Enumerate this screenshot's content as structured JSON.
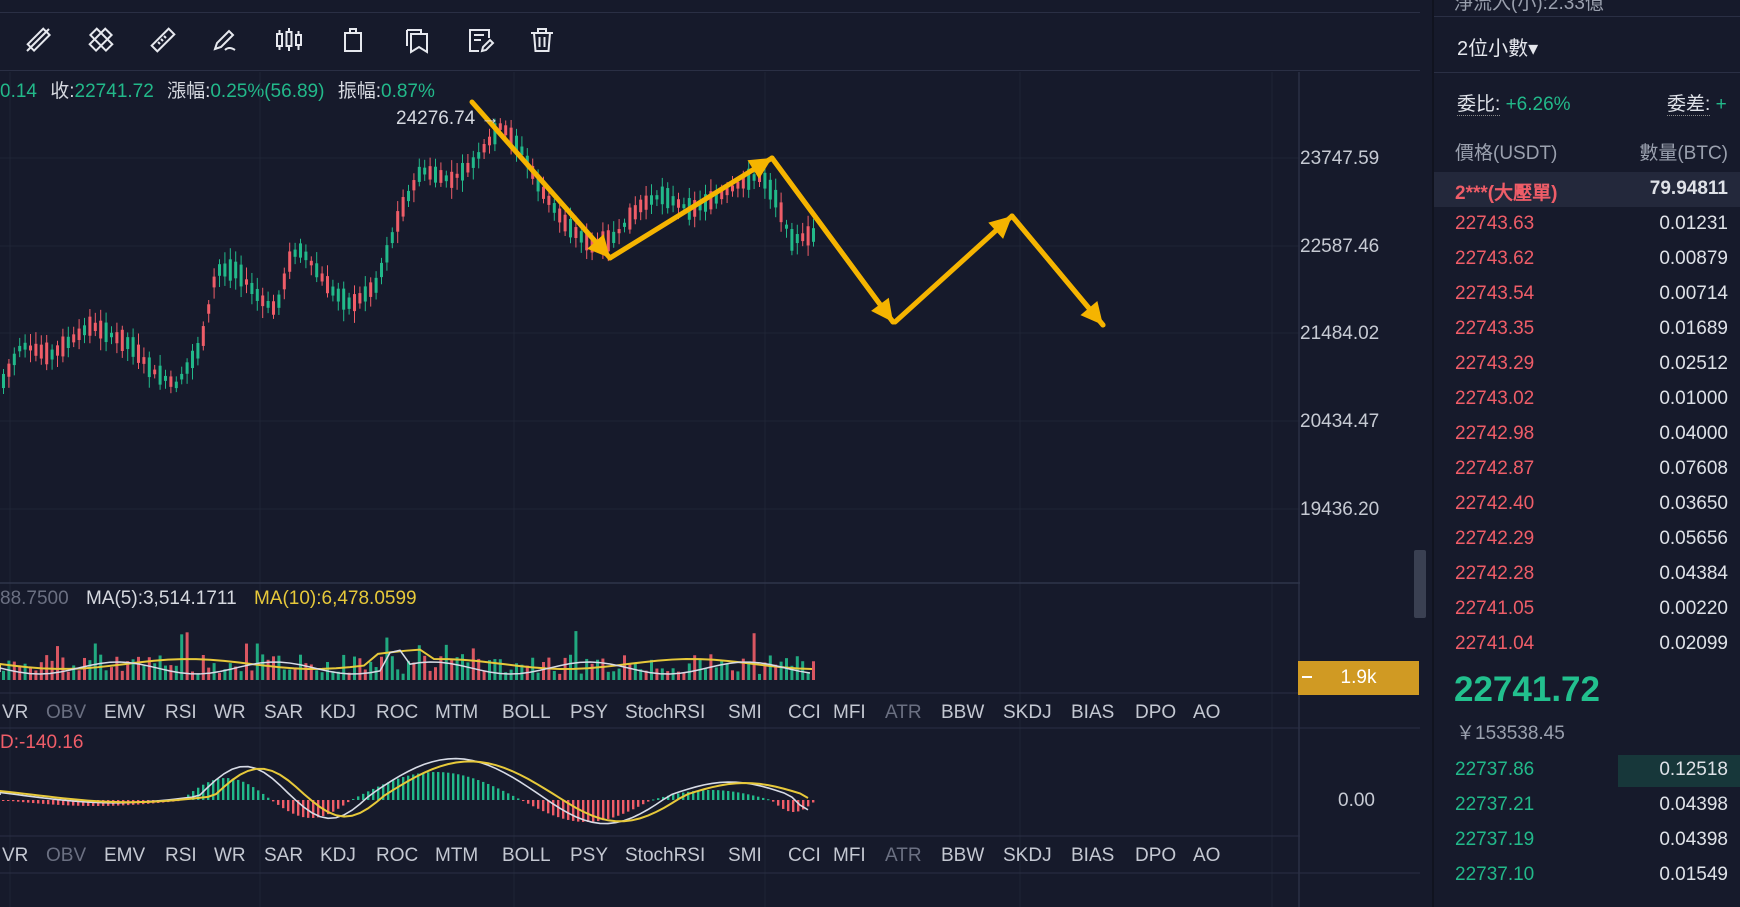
{
  "colors": {
    "background": "#161a2b",
    "up": "#22b98a",
    "down": "#ef5d68",
    "accent": "#f5b400",
    "ma10": "#e7c93a",
    "volume_badge": "#d09a23"
  },
  "toolbar": {
    "icons": [
      "ruler-diagonal-icon",
      "ruler-cross-icon",
      "ruler-icon",
      "pen-icon",
      "candles-icon",
      "clipboard-icon",
      "copy-icon",
      "edit-note-icon",
      "trash-icon"
    ]
  },
  "ohlc": {
    "open_partial": "0.14",
    "close_label": "收:",
    "close_value": "22741.72",
    "change_label": "漲幅:",
    "change_value": "0.25%(56.89)",
    "amp_label": "振幅:",
    "amp_value": "0.87%"
  },
  "chart": {
    "high_label": "24276.74 →",
    "y_ticks": [
      "23747.59",
      "22587.46",
      "21484.02",
      "20434.47",
      "19436.20"
    ]
  },
  "volume_indicator": {
    "prefix": "88.7500",
    "ma5": "MA(5):3,514.1711",
    "ma10": "MA(10):6,478.0599",
    "badge": "1.9k"
  },
  "indicator_tabs": [
    "VR",
    "OBV",
    "EMV",
    "RSI",
    "WR",
    "SAR",
    "KDJ",
    "ROC",
    "MTM",
    "BOLL",
    "PSY",
    "StochRSI",
    "SMI",
    "CCI",
    "MFI",
    "ATR",
    "BBW",
    "SKDJ",
    "BIAS",
    "DPO",
    "AO"
  ],
  "macd": {
    "label": "D:-140.16",
    "zero": "0.00"
  },
  "orderbook": {
    "top_partial": "淨流入(小):2.33億",
    "decimals": "2位小數▾",
    "ratio_label": "委比:",
    "ratio_value": "+6.26%",
    "diff_label": "委差:",
    "diff_value": "+",
    "col_price": "價格(USDT)",
    "col_qty": "數量(BTC)",
    "big_order": {
      "price": "2***(大壓單)",
      "qty": "79.94811"
    },
    "asks": [
      {
        "price": "22743.63",
        "qty": "0.01231"
      },
      {
        "price": "22743.62",
        "qty": "0.00879"
      },
      {
        "price": "22743.54",
        "qty": "0.00714"
      },
      {
        "price": "22743.35",
        "qty": "0.01689"
      },
      {
        "price": "22743.29",
        "qty": "0.02512"
      },
      {
        "price": "22743.02",
        "qty": "0.01000"
      },
      {
        "price": "22742.98",
        "qty": "0.04000"
      },
      {
        "price": "22742.87",
        "qty": "0.07608"
      },
      {
        "price": "22742.40",
        "qty": "0.03650"
      },
      {
        "price": "22742.29",
        "qty": "0.05656"
      },
      {
        "price": "22742.28",
        "qty": "0.04384"
      },
      {
        "price": "22741.05",
        "qty": "0.00220"
      },
      {
        "price": "22741.04",
        "qty": "0.02099"
      }
    ],
    "last_price": "22741.72",
    "last_cny": "￥153538.45",
    "bids": [
      {
        "price": "22737.86",
        "qty": "0.12518"
      },
      {
        "price": "22737.21",
        "qty": "0.04398"
      },
      {
        "price": "22737.19",
        "qty": "0.04398"
      },
      {
        "price": "22737.10",
        "qty": "0.01549"
      }
    ]
  }
}
